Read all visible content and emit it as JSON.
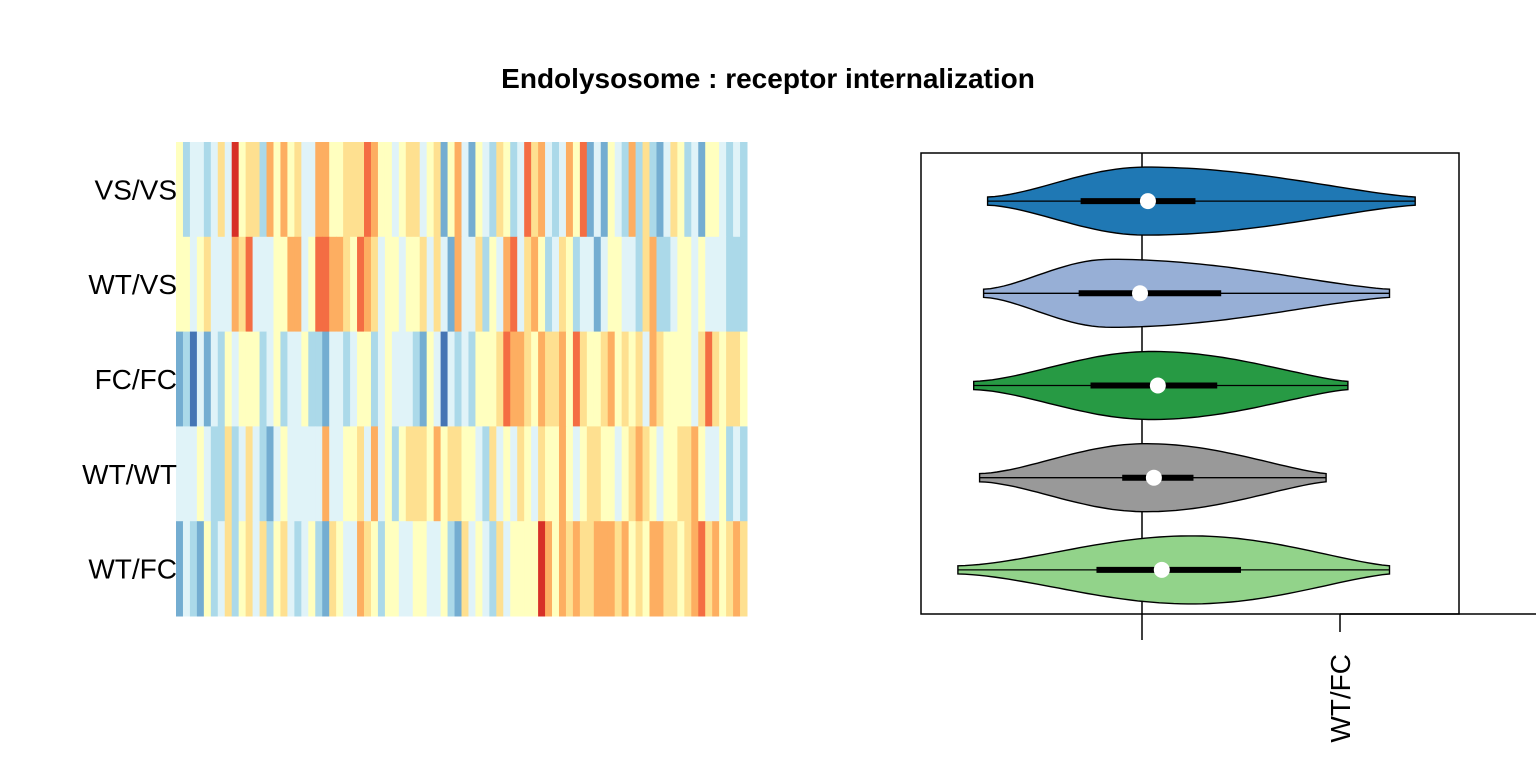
{
  "chart_data": [
    {
      "type": "heatmap",
      "title": "Endolysosome : receptor internalization",
      "rows": [
        "VS/VS",
        "WT/VS",
        "FC/FC",
        "WT/WT",
        "WT/FC"
      ],
      "n_columns": 82,
      "colormap": [
        "#4575b4",
        "#74add1",
        "#abd9e9",
        "#e0f3f8",
        "#ffffbf",
        "#fee090",
        "#fdae61",
        "#f46d43",
        "#d73027"
      ],
      "cells": [
        [
          4,
          2,
          3,
          3,
          2,
          3,
          5,
          3,
          8,
          4,
          5,
          5,
          2,
          6,
          4,
          6,
          4,
          5,
          3,
          3,
          6,
          6,
          4,
          4,
          5,
          5,
          5,
          7,
          6,
          4,
          4,
          3,
          4,
          5,
          5,
          3,
          4,
          5,
          1,
          4,
          6,
          3,
          1,
          4,
          3,
          2,
          5,
          4,
          2,
          3,
          7,
          5,
          6,
          3,
          2,
          3,
          6,
          4,
          7,
          1,
          3,
          1,
          4,
          3,
          2,
          6,
          2,
          5,
          2,
          1,
          3,
          5,
          4,
          2,
          3,
          1,
          4,
          4,
          3,
          2,
          3,
          2
        ],
        [
          4,
          4,
          3,
          4,
          5,
          3,
          3,
          3,
          6,
          5,
          7,
          3,
          3,
          3,
          4,
          4,
          6,
          6,
          3,
          4,
          7,
          7,
          6,
          6,
          5,
          4,
          7,
          6,
          5,
          3,
          4,
          4,
          3,
          4,
          4,
          5,
          3,
          5,
          3,
          1,
          6,
          3,
          3,
          5,
          2,
          4,
          3,
          6,
          7,
          3,
          5,
          6,
          4,
          2,
          3,
          5,
          4,
          2,
          3,
          3,
          1,
          3,
          4,
          4,
          3,
          3,
          2,
          5,
          6,
          2,
          2,
          3,
          4,
          4,
          3,
          4,
          3,
          3,
          3,
          2,
          2,
          2
        ],
        [
          1,
          2,
          0,
          3,
          1,
          3,
          2,
          4,
          3,
          4,
          4,
          4,
          2,
          3,
          4,
          2,
          3,
          3,
          4,
          2,
          2,
          1,
          3,
          3,
          2,
          3,
          4,
          4,
          2,
          3,
          4,
          3,
          3,
          3,
          2,
          1,
          4,
          3,
          0,
          3,
          2,
          3,
          2,
          4,
          4,
          4,
          5,
          7,
          6,
          6,
          5,
          4,
          6,
          5,
          5,
          6,
          4,
          7,
          5,
          4,
          4,
          5,
          6,
          4,
          5,
          4,
          5,
          3,
          6,
          5,
          4,
          4,
          4,
          4,
          3,
          5,
          7,
          5,
          4,
          5,
          5,
          4
        ],
        [
          3,
          3,
          3,
          4,
          3,
          2,
          2,
          5,
          2,
          3,
          5,
          3,
          2,
          1,
          3,
          4,
          3,
          3,
          3,
          3,
          3,
          6,
          3,
          3,
          4,
          4,
          5,
          3,
          6,
          3,
          4,
          2,
          4,
          5,
          5,
          5,
          4,
          6,
          4,
          5,
          5,
          4,
          4,
          3,
          2,
          5,
          3,
          4,
          3,
          5,
          4,
          3,
          5,
          4,
          4,
          6,
          4,
          3,
          4,
          5,
          5,
          4,
          4,
          3,
          4,
          5,
          6,
          5,
          4,
          3,
          4,
          4,
          5,
          5,
          6,
          4,
          3,
          3,
          4,
          2,
          3,
          2
        ],
        [
          1,
          3,
          2,
          1,
          4,
          2,
          3,
          5,
          2,
          4,
          5,
          3,
          5,
          2,
          4,
          5,
          3,
          2,
          3,
          4,
          2,
          1,
          5,
          4,
          3,
          3,
          6,
          5,
          4,
          2,
          4,
          4,
          3,
          3,
          4,
          4,
          3,
          3,
          4,
          2,
          1,
          5,
          3,
          4,
          3,
          2,
          5,
          3,
          4,
          4,
          4,
          4,
          8,
          6,
          4,
          6,
          5,
          6,
          5,
          5,
          6,
          6,
          6,
          5,
          6,
          4,
          5,
          4,
          6,
          6,
          5,
          5,
          4,
          5,
          6,
          7,
          5,
          6,
          4,
          5,
          6,
          5
        ]
      ]
    },
    {
      "type": "violin",
      "orientation": "horizontal",
      "xlim": [
        -1,
        1.5
      ],
      "reference_line_x": 0,
      "tick_label": "WT/FC",
      "series": [
        {
          "fill": "#1f78b4",
          "min": -0.78,
          "q1": -0.31,
          "median": 0.03,
          "q3": 0.27,
          "max": 1.38,
          "peak": 0.02,
          "width_scale": 1.0
        },
        {
          "fill": "#97afd6",
          "min": -0.8,
          "q1": -0.32,
          "median": -0.01,
          "q3": 0.4,
          "max": 1.25,
          "peak": -0.16,
          "width_scale": 1.0
        },
        {
          "fill": "#279a44",
          "min": -0.85,
          "q1": -0.26,
          "median": 0.08,
          "q3": 0.38,
          "max": 1.04,
          "peak": 0.05,
          "width_scale": 1.0
        },
        {
          "fill": "#999999",
          "min": -0.82,
          "q1": -0.1,
          "median": 0.06,
          "q3": 0.26,
          "max": 0.93,
          "peak": 0.02,
          "width_scale": 1.0
        },
        {
          "fill": "#92d38a",
          "min": -0.93,
          "q1": -0.23,
          "median": 0.1,
          "q3": 0.5,
          "max": 1.25,
          "peak": 0.25,
          "width_scale": 1.0
        }
      ]
    }
  ]
}
